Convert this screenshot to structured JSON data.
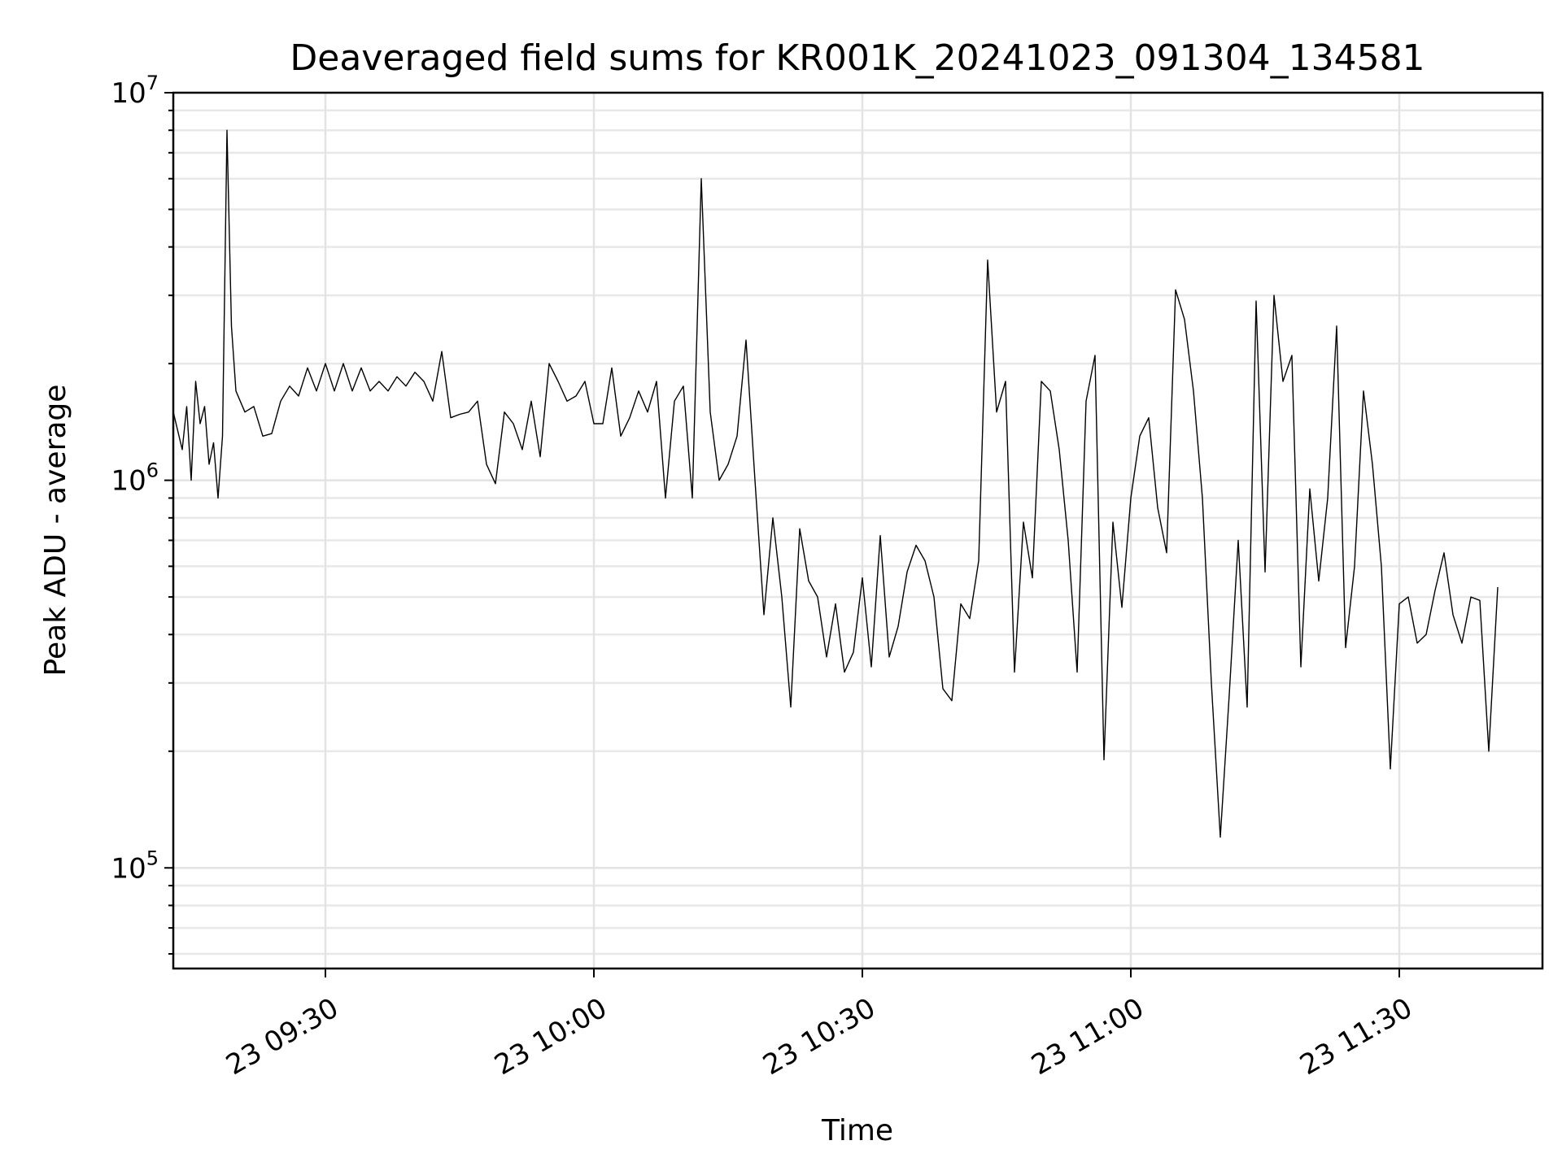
{
  "chart_data": {
    "type": "line",
    "title": "Deaveraged field sums for KR001K_20241023_091304_134581",
    "xlabel": "Time",
    "ylabel": "Peak ADU - average",
    "yscale": "log",
    "ylim": [
      55000,
      10000000
    ],
    "xlim": [
      "2024-10-23 09:13",
      "2024-10-23 11:46"
    ],
    "grid": true,
    "x_ticks": [
      {
        "time": "2024-10-23 09:30",
        "label": "23 09:30"
      },
      {
        "time": "2024-10-23 10:00",
        "label": "23 10:00"
      },
      {
        "time": "2024-10-23 10:30",
        "label": "23 10:30"
      },
      {
        "time": "2024-10-23 11:00",
        "label": "23 11:00"
      },
      {
        "time": "2024-10-23 11:30",
        "label": "23 11:30"
      }
    ],
    "y_ticks": [
      {
        "value": 100000,
        "base": "10",
        "exp": "5"
      },
      {
        "value": 1000000,
        "base": "10",
        "exp": "6"
      },
      {
        "value": 10000000,
        "base": "10",
        "exp": "7"
      }
    ],
    "series": [
      {
        "color": "#000000",
        "points": [
          [
            "09:13",
            1500000
          ],
          [
            "09:14",
            1200000
          ],
          [
            "09:14:30",
            1550000
          ],
          [
            "09:15",
            1000000
          ],
          [
            "09:15:30",
            1800000
          ],
          [
            "09:16",
            1400000
          ],
          [
            "09:16:30",
            1550000
          ],
          [
            "09:17",
            1100000
          ],
          [
            "09:17:30",
            1250000
          ],
          [
            "09:18",
            900000
          ],
          [
            "09:18:30",
            1300000
          ],
          [
            "09:19",
            8000000
          ],
          [
            "09:19:30",
            2500000
          ],
          [
            "09:20",
            1700000
          ],
          [
            "09:21",
            1500000
          ],
          [
            "09:22",
            1550000
          ],
          [
            "09:23",
            1300000
          ],
          [
            "09:24",
            1320000
          ],
          [
            "09:25",
            1600000
          ],
          [
            "09:26",
            1750000
          ],
          [
            "09:27",
            1650000
          ],
          [
            "09:28",
            1950000
          ],
          [
            "09:29",
            1700000
          ],
          [
            "09:30",
            2000000
          ],
          [
            "09:31",
            1700000
          ],
          [
            "09:32",
            2000000
          ],
          [
            "09:33",
            1700000
          ],
          [
            "09:34",
            1950000
          ],
          [
            "09:35",
            1700000
          ],
          [
            "09:36",
            1800000
          ],
          [
            "09:37",
            1700000
          ],
          [
            "09:38",
            1850000
          ],
          [
            "09:39",
            1750000
          ],
          [
            "09:40",
            1900000
          ],
          [
            "09:41",
            1800000
          ],
          [
            "09:42",
            1600000
          ],
          [
            "09:43",
            2150000
          ],
          [
            "09:44",
            1450000
          ],
          [
            "09:45",
            1480000
          ],
          [
            "09:46",
            1500000
          ],
          [
            "09:47",
            1600000
          ],
          [
            "09:48",
            1100000
          ],
          [
            "09:49",
            980000
          ],
          [
            "09:50",
            1500000
          ],
          [
            "09:51",
            1400000
          ],
          [
            "09:52",
            1200000
          ],
          [
            "09:53",
            1600000
          ],
          [
            "09:54",
            1150000
          ],
          [
            "09:55",
            2000000
          ],
          [
            "09:56",
            1800000
          ],
          [
            "09:57",
            1600000
          ],
          [
            "09:58",
            1650000
          ],
          [
            "09:59",
            1800000
          ],
          [
            "10:00",
            1400000
          ],
          [
            "10:01",
            1400000
          ],
          [
            "10:02",
            1950000
          ],
          [
            "10:03",
            1300000
          ],
          [
            "10:04",
            1450000
          ],
          [
            "10:05",
            1700000
          ],
          [
            "10:06",
            1500000
          ],
          [
            "10:07",
            1800000
          ],
          [
            "10:08",
            900000
          ],
          [
            "10:09",
            1600000
          ],
          [
            "10:10",
            1750000
          ],
          [
            "10:11",
            900000
          ],
          [
            "10:12",
            6000000
          ],
          [
            "10:13",
            1500000
          ],
          [
            "10:14",
            1000000
          ],
          [
            "10:15",
            1100000
          ],
          [
            "10:16",
            1300000
          ],
          [
            "10:17",
            2300000
          ],
          [
            "10:18",
            1000000
          ],
          [
            "10:19",
            450000
          ],
          [
            "10:20",
            800000
          ],
          [
            "10:21",
            500000
          ],
          [
            "10:22",
            260000
          ],
          [
            "10:23",
            750000
          ],
          [
            "10:24",
            550000
          ],
          [
            "10:25",
            500000
          ],
          [
            "10:26",
            350000
          ],
          [
            "10:27",
            480000
          ],
          [
            "10:28",
            320000
          ],
          [
            "10:29",
            360000
          ],
          [
            "10:30",
            560000
          ],
          [
            "10:31",
            330000
          ],
          [
            "10:32",
            720000
          ],
          [
            "10:33",
            350000
          ],
          [
            "10:34",
            420000
          ],
          [
            "10:35",
            580000
          ],
          [
            "10:36",
            680000
          ],
          [
            "10:37",
            620000
          ],
          [
            "10:38",
            500000
          ],
          [
            "10:39",
            290000
          ],
          [
            "10:40",
            270000
          ],
          [
            "10:41",
            480000
          ],
          [
            "10:42",
            440000
          ],
          [
            "10:43",
            620000
          ],
          [
            "10:44",
            3700000
          ],
          [
            "10:45",
            1500000
          ],
          [
            "10:46",
            1800000
          ],
          [
            "10:47",
            320000
          ],
          [
            "10:48",
            780000
          ],
          [
            "10:49",
            560000
          ],
          [
            "10:50",
            1800000
          ],
          [
            "10:51",
            1700000
          ],
          [
            "10:52",
            1200000
          ],
          [
            "10:53",
            700000
          ],
          [
            "10:54",
            320000
          ],
          [
            "10:55",
            1600000
          ],
          [
            "10:56",
            2100000
          ],
          [
            "10:57",
            190000
          ],
          [
            "10:58",
            780000
          ],
          [
            "10:59",
            470000
          ],
          [
            "11:00",
            900000
          ],
          [
            "11:01",
            1300000
          ],
          [
            "11:02",
            1450000
          ],
          [
            "11:03",
            850000
          ],
          [
            "11:04",
            650000
          ],
          [
            "11:05",
            3100000
          ],
          [
            "11:06",
            2600000
          ],
          [
            "11:07",
            1700000
          ],
          [
            "11:08",
            900000
          ],
          [
            "11:09",
            300000
          ],
          [
            "11:10",
            120000
          ],
          [
            "11:11",
            280000
          ],
          [
            "11:12",
            700000
          ],
          [
            "11:13",
            260000
          ],
          [
            "11:14",
            2900000
          ],
          [
            "11:15",
            580000
          ],
          [
            "11:16",
            3000000
          ],
          [
            "11:17",
            1800000
          ],
          [
            "11:18",
            2100000
          ],
          [
            "11:19",
            330000
          ],
          [
            "11:20",
            950000
          ],
          [
            "11:21",
            550000
          ],
          [
            "11:22",
            900000
          ],
          [
            "11:23",
            2500000
          ],
          [
            "11:24",
            370000
          ],
          [
            "11:25",
            600000
          ],
          [
            "11:26",
            1700000
          ],
          [
            "11:27",
            1100000
          ],
          [
            "11:28",
            600000
          ],
          [
            "11:29",
            180000
          ],
          [
            "11:30",
            480000
          ],
          [
            "11:31",
            500000
          ],
          [
            "11:32",
            380000
          ],
          [
            "11:33",
            400000
          ],
          [
            "11:34",
            520000
          ],
          [
            "11:35",
            650000
          ],
          [
            "11:36",
            450000
          ],
          [
            "11:37",
            380000
          ],
          [
            "11:38",
            500000
          ],
          [
            "11:39",
            490000
          ],
          [
            "11:40",
            200000
          ],
          [
            "11:41",
            530000
          ]
        ]
      }
    ]
  }
}
